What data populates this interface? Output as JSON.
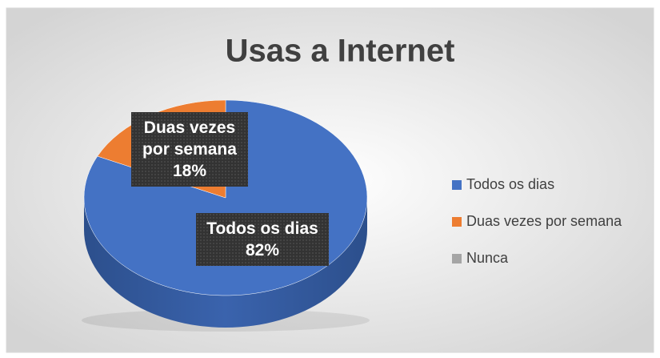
{
  "chart_data": {
    "type": "pie",
    "title": "Usas a Internet",
    "categories": [
      "Todos os dias",
      "Duas vezes por semana",
      "Nunca"
    ],
    "values": [
      82,
      18,
      0
    ],
    "value_labels": [
      "82%",
      "18%",
      null
    ],
    "colors": [
      "#4472c4",
      "#ed7d31",
      "#a5a5a5"
    ],
    "legend": "right"
  }
}
